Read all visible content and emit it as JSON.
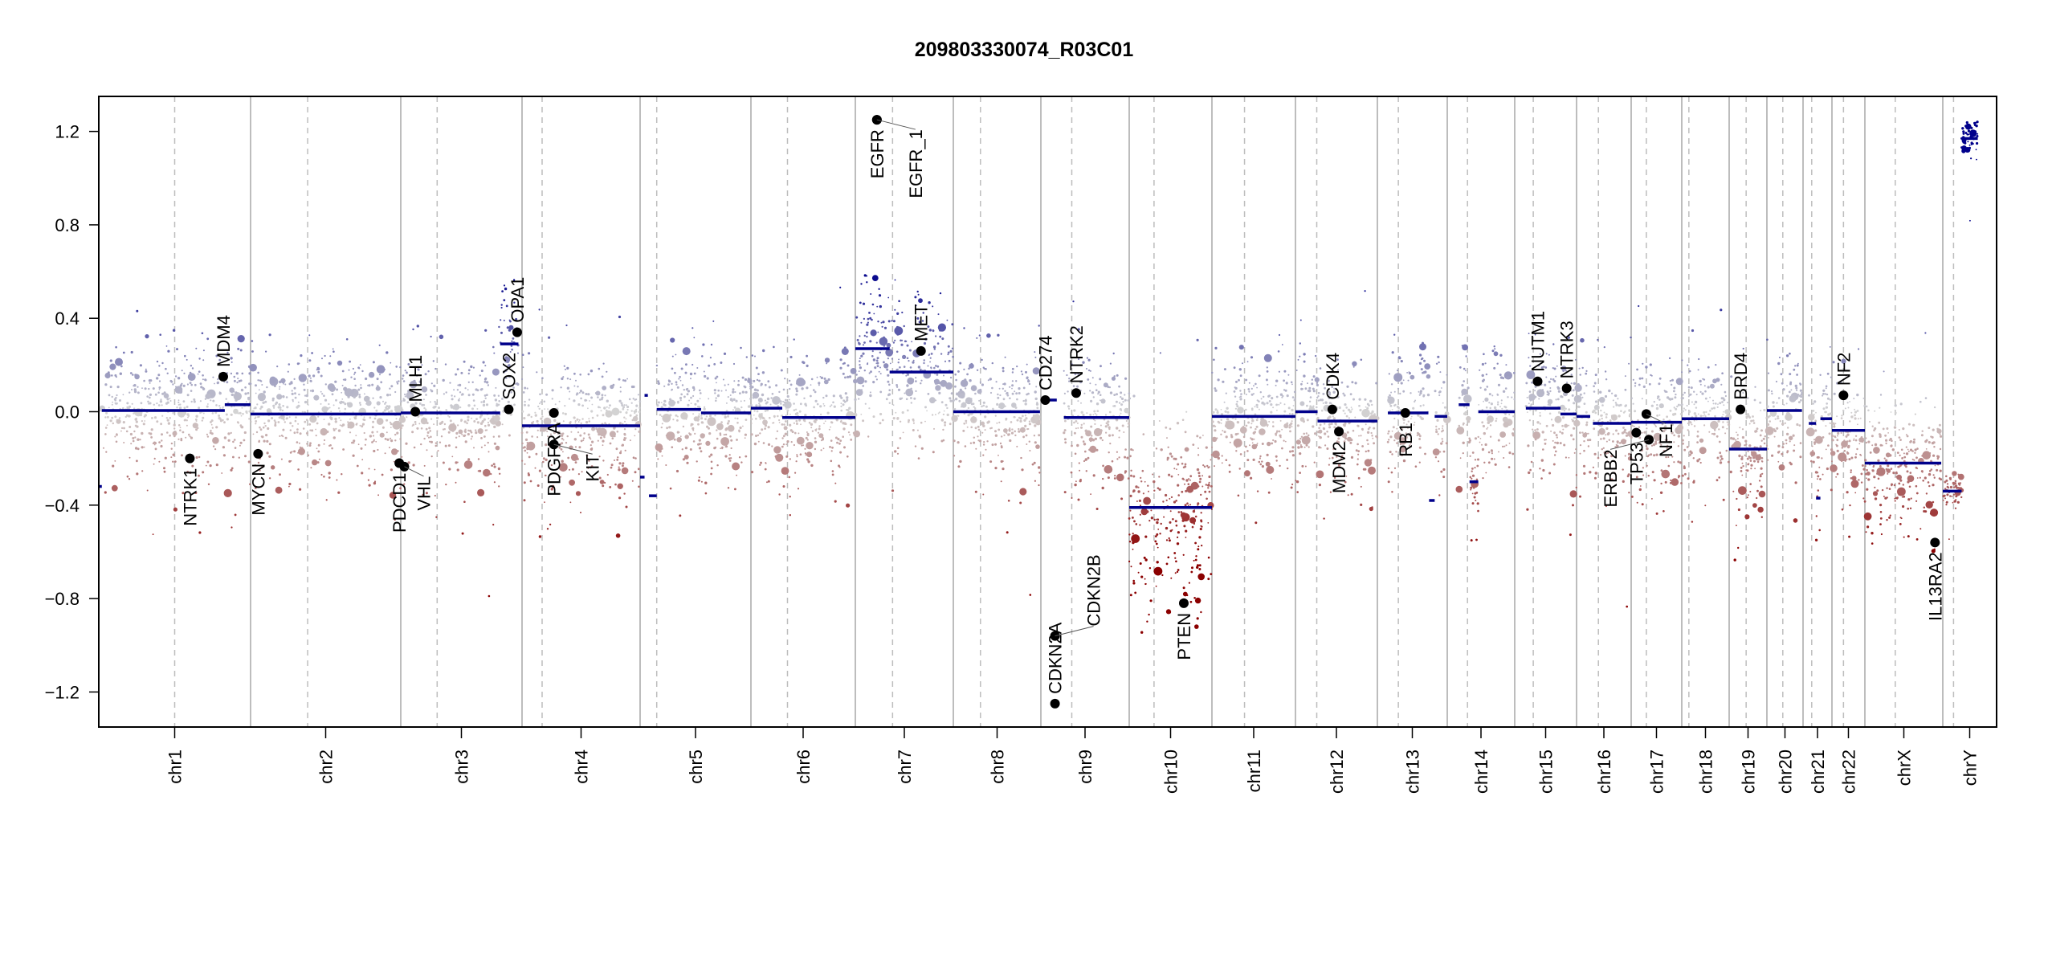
{
  "chart_data": {
    "type": "scatter",
    "title": "209803330074_R03C01",
    "xlabel": "",
    "ylabel": "",
    "ylim": [
      -1.35,
      1.35
    ],
    "yticks": [
      "1.2",
      "0.8",
      "0.4",
      "0.0",
      "-0.4",
      "-0.8",
      "-1.2"
    ],
    "ytick_values": [
      1.2,
      0.8,
      0.4,
      0.0,
      -0.4,
      -0.8,
      -1.2
    ],
    "grid": false,
    "colors": {
      "gain": "#00008B",
      "loss": "#8B0000",
      "neutral": "#D3D3D3",
      "segment": "#00008B",
      "gene": "#000000"
    },
    "chromosomes": [
      {
        "name": "chr1",
        "centromere": 0.5
      },
      {
        "name": "chr2",
        "centromere": 0.38
      },
      {
        "name": "chr3",
        "centromere": 0.3
      },
      {
        "name": "chr4",
        "centromere": 0.17
      },
      {
        "name": "chr5",
        "centromere": 0.15
      },
      {
        "name": "chr6",
        "centromere": 0.35
      },
      {
        "name": "chr7",
        "centromere": 0.38
      },
      {
        "name": "chr8",
        "centromere": 0.31
      },
      {
        "name": "chr9",
        "centromere": 0.35
      },
      {
        "name": "chr10",
        "centromere": 0.3
      },
      {
        "name": "chr11",
        "centromere": 0.39
      },
      {
        "name": "chr12",
        "centromere": 0.26
      },
      {
        "name": "chr13",
        "centromere": 0.3
      },
      {
        "name": "chr14",
        "centromere": 0.3
      },
      {
        "name": "chr15",
        "centromere": 0.3
      },
      {
        "name": "chr16",
        "centromere": 0.4
      },
      {
        "name": "chr17",
        "centromere": 0.3
      },
      {
        "name": "chr18",
        "centromere": 0.15
      },
      {
        "name": "chr19",
        "centromere": 0.45
      },
      {
        "name": "chr20",
        "centromere": 0.44
      },
      {
        "name": "chr21",
        "centromere": 0.3
      },
      {
        "name": "chr22",
        "centromere": 0.35
      },
      {
        "name": "chrX",
        "centromere": 0.39
      },
      {
        "name": "chrY",
        "centromere": 0.2
      }
    ],
    "segments": [
      [
        "chr1",
        0.0,
        0.02,
        -0.32
      ],
      [
        "chr1",
        0.02,
        0.83,
        0.005
      ],
      [
        "chr1",
        0.83,
        1.0,
        0.03
      ],
      [
        "chr2",
        0.0,
        1.0,
        -0.01
      ],
      [
        "chr3",
        0.0,
        0.82,
        -0.005
      ],
      [
        "chr3",
        0.82,
        0.97,
        0.29
      ],
      [
        "chr4",
        0.0,
        1.0,
        -0.06
      ],
      [
        "chr5",
        0.0,
        0.04,
        -0.28
      ],
      [
        "chr5",
        0.04,
        0.07,
        0.07
      ],
      [
        "chr5",
        0.08,
        0.15,
        -0.36
      ],
      [
        "chr5",
        0.15,
        0.55,
        0.01
      ],
      [
        "chr5",
        0.55,
        1.0,
        -0.005
      ],
      [
        "chr6",
        0.0,
        0.3,
        0.015
      ],
      [
        "chr6",
        0.3,
        1.0,
        -0.025
      ],
      [
        "chr7",
        0.0,
        0.35,
        0.27
      ],
      [
        "chr7",
        0.35,
        1.0,
        0.17
      ],
      [
        "chr8",
        0.0,
        0.99,
        0.0
      ],
      [
        "chr9",
        0.1,
        0.18,
        0.05
      ],
      [
        "chr9",
        0.26,
        1.0,
        -0.025
      ],
      [
        "chr10",
        0.0,
        1.0,
        -0.41
      ],
      [
        "chr11",
        0.0,
        1.0,
        -0.02
      ],
      [
        "chr12",
        0.0,
        0.27,
        0.0
      ],
      [
        "chr12",
        0.27,
        1.0,
        -0.04
      ],
      [
        "chr13",
        0.15,
        0.73,
        -0.005
      ],
      [
        "chr13",
        0.74,
        0.82,
        -0.38
      ],
      [
        "chr13",
        0.82,
        1.0,
        -0.02
      ],
      [
        "chr14",
        0.17,
        0.33,
        0.03
      ],
      [
        "chr14",
        0.33,
        0.46,
        -0.3
      ],
      [
        "chr14",
        0.46,
        1.0,
        0.0
      ],
      [
        "chr15",
        0.18,
        0.74,
        0.015
      ],
      [
        "chr15",
        0.74,
        1.0,
        -0.01
      ],
      [
        "chr16",
        0.0,
        0.25,
        -0.02
      ],
      [
        "chr16",
        0.3,
        1.0,
        -0.05
      ],
      [
        "chr17",
        0.0,
        1.0,
        -0.045
      ],
      [
        "chr18",
        0.0,
        1.0,
        -0.03
      ],
      [
        "chr19",
        0.0,
        1.0,
        -0.16
      ],
      [
        "chr20",
        0.0,
        0.97,
        0.005
      ],
      [
        "chr21",
        0.2,
        0.45,
        -0.05
      ],
      [
        "chr21",
        0.45,
        0.6,
        -0.37
      ],
      [
        "chr21",
        0.6,
        1.0,
        -0.03
      ],
      [
        "chr22",
        0.0,
        1.0,
        -0.08
      ],
      [
        "chrX",
        0.0,
        0.98,
        -0.22
      ],
      [
        "chrY",
        0.0,
        0.35,
        -0.34
      ],
      [
        "chrY",
        0.35,
        0.65,
        1.17
      ]
    ],
    "genes": [
      {
        "name": "NTRK1",
        "chr": "chr1",
        "pos": 0.6,
        "value": -0.2,
        "label": "below"
      },
      {
        "name": "MDM4",
        "chr": "chr1",
        "pos": 0.82,
        "value": 0.15,
        "label": "above"
      },
      {
        "name": "MYCN",
        "chr": "chr2",
        "pos": 0.05,
        "value": -0.18,
        "label": "below"
      },
      {
        "name": "PDCD1",
        "chr": "chr2",
        "pos": 0.99,
        "value": -0.22,
        "label": "below"
      },
      {
        "name": "VHL",
        "chr": "chr3",
        "pos": 0.03,
        "value": -0.235,
        "label": "below"
      },
      {
        "name": "MLH1",
        "chr": "chr3",
        "pos": 0.12,
        "value": 0.0,
        "label": "above"
      },
      {
        "name": "SOX2",
        "chr": "chr3",
        "pos": 0.89,
        "value": 0.01,
        "label": "above"
      },
      {
        "name": "OPA1",
        "chr": "chr3",
        "pos": 0.96,
        "value": 0.34,
        "label": "above"
      },
      {
        "name": "PDGFRA",
        "chr": "chr4",
        "pos": 0.27,
        "value": -0.005,
        "label": "below"
      },
      {
        "name": "KIT",
        "chr": "chr4",
        "pos": 0.27,
        "value": -0.14,
        "label": "below"
      },
      {
        "name": "EGFR",
        "chr": "chr7",
        "pos": 0.22,
        "value": 1.25,
        "label": "below"
      },
      {
        "name": "EGFR_1",
        "chr": "chr7",
        "pos": 0.22,
        "value": 1.25,
        "label": "below"
      },
      {
        "name": "MET",
        "chr": "chr7",
        "pos": 0.67,
        "value": 0.26,
        "label": "above"
      },
      {
        "name": "CD274",
        "chr": "chr9",
        "pos": 0.05,
        "value": 0.05,
        "label": "above"
      },
      {
        "name": "CDKN2A",
        "chr": "chr9",
        "pos": 0.16,
        "value": -1.25,
        "label": "above"
      },
      {
        "name": "CDKN2B",
        "chr": "chr9",
        "pos": 0.16,
        "value": -0.96,
        "label": "above"
      },
      {
        "name": "NTRK2",
        "chr": "chr9",
        "pos": 0.4,
        "value": 0.08,
        "label": "above"
      },
      {
        "name": "PTEN",
        "chr": "chr10",
        "pos": 0.66,
        "value": -0.82,
        "label": "below"
      },
      {
        "name": "CDK4",
        "chr": "chr12",
        "pos": 0.45,
        "value": 0.01,
        "label": "above"
      },
      {
        "name": "MDM2",
        "chr": "chr12",
        "pos": 0.53,
        "value": -0.085,
        "label": "below"
      },
      {
        "name": "RB1",
        "chr": "chr13",
        "pos": 0.4,
        "value": -0.005,
        "label": "below"
      },
      {
        "name": "NUTM1",
        "chr": "chr15",
        "pos": 0.37,
        "value": 0.13,
        "label": "above"
      },
      {
        "name": "NTRK3",
        "chr": "chr15",
        "pos": 0.84,
        "value": 0.1,
        "label": "above"
      },
      {
        "name": "TP53",
        "chr": "chr17",
        "pos": 0.1,
        "value": -0.09,
        "label": "below"
      },
      {
        "name": "NF1",
        "chr": "chr17",
        "pos": 0.3,
        "value": -0.01,
        "label": "below"
      },
      {
        "name": "ERBB2",
        "chr": "chr17",
        "pos": 0.35,
        "value": -0.12,
        "label": "below"
      },
      {
        "name": "BRD4",
        "chr": "chr19",
        "pos": 0.3,
        "value": 0.01,
        "label": "above"
      },
      {
        "name": "NF2",
        "chr": "chr22",
        "pos": 0.35,
        "value": 0.07,
        "label": "above"
      },
      {
        "name": "IL13RA2",
        "chr": "chrX",
        "pos": 0.9,
        "value": -0.56,
        "label": "below"
      }
    ]
  }
}
